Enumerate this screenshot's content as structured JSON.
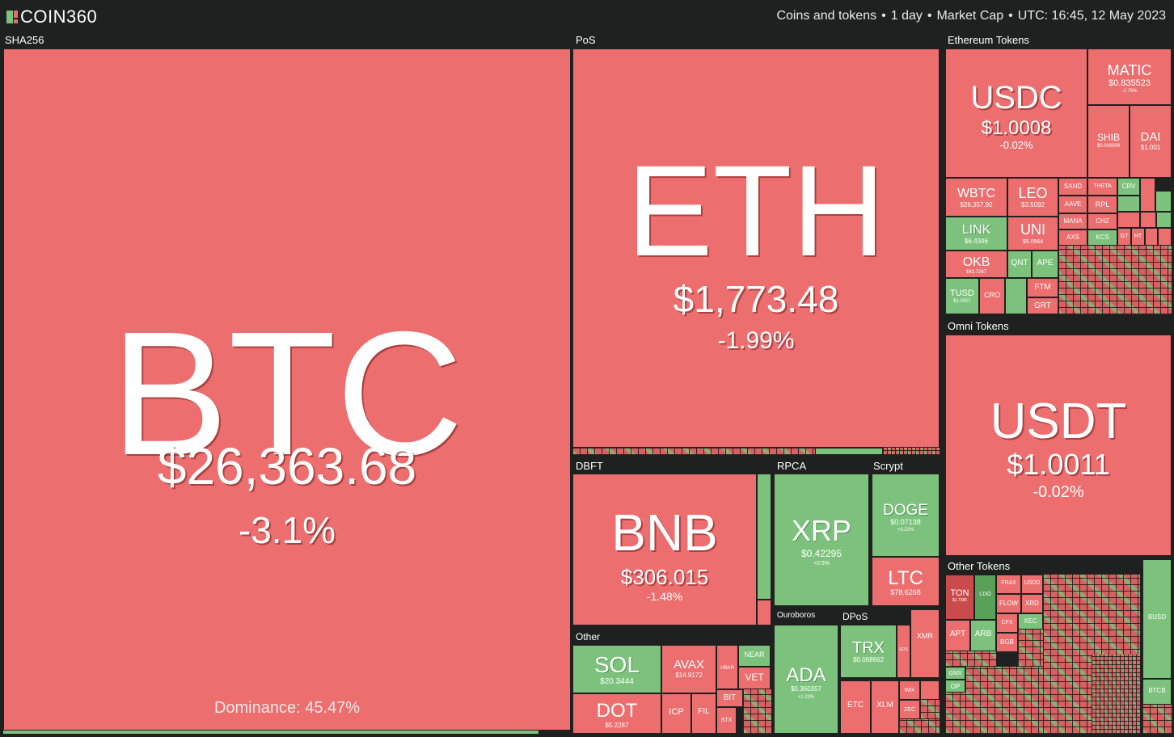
{
  "header": {
    "logo_text": "COIN360",
    "filter_assets": "Coins and tokens",
    "period": "1 day",
    "metric": "Market Cap",
    "time": "UTC: 16:45, 12 May 2023",
    "separator": "•"
  },
  "colors": {
    "down": "#ec6e6e",
    "up": "#7cc27c",
    "background": "#1f2020"
  },
  "groups": {
    "sha256": "SHA256",
    "pos": "PoS",
    "ethereum_tokens": "Ethereum Tokens",
    "omni_tokens": "Omni Tokens",
    "dbft": "DBFT",
    "rpca": "RPCA",
    "scrypt": "Scrypt",
    "other": "Other",
    "ouroboros": "Ouroboros",
    "dpos": "DPoS",
    "other_tokens": "Other Tokens"
  },
  "coins": {
    "btc": {
      "symbol": "BTC",
      "price": "$26,363.68",
      "change": "-3.1%",
      "dominance": "Dominance: 45.47%"
    },
    "eth": {
      "symbol": "ETH",
      "price": "$1,773.48",
      "change": "-1.99%"
    },
    "usdc": {
      "symbol": "USDC",
      "price": "$1.0008",
      "change": "-0.02%"
    },
    "matic": {
      "symbol": "MATIC",
      "price": "$0.835523",
      "change": "-1.76%"
    },
    "shib": {
      "symbol": "SHIB",
      "price": "$0.000009"
    },
    "dai": {
      "symbol": "DAI",
      "price": "$1.001"
    },
    "wbtc": {
      "symbol": "WBTC",
      "price": "$26,357.90"
    },
    "leo": {
      "symbol": "LEO",
      "price": "$3.5092"
    },
    "link": {
      "symbol": "LINK",
      "price": "$6.4346"
    },
    "uni": {
      "symbol": "UNI",
      "price": "$5.0564"
    },
    "okb": {
      "symbol": "OKB",
      "price": "$43.7267"
    },
    "qnt": {
      "symbol": "QNT"
    },
    "ape": {
      "symbol": "APE"
    },
    "tusd": {
      "symbol": "TUSD",
      "price": "$1.0007"
    },
    "cro": {
      "symbol": "CRO"
    },
    "ftm": {
      "symbol": "FTM"
    },
    "grt": {
      "symbol": "GRT"
    },
    "sand": {
      "symbol": "SAND"
    },
    "theta": {
      "symbol": "THETA"
    },
    "crv": {
      "symbol": "CRV"
    },
    "aave": {
      "symbol": "AAVE"
    },
    "rpl": {
      "symbol": "RPL"
    },
    "mana": {
      "symbol": "MANA"
    },
    "chz": {
      "symbol": "CHZ"
    },
    "axs": {
      "symbol": "AXS"
    },
    "kcs": {
      "symbol": "KCS"
    },
    "gt": {
      "symbol": "GT"
    },
    "ht": {
      "symbol": "HT"
    },
    "usdt": {
      "symbol": "USDT",
      "price": "$1.0011",
      "change": "-0.02%"
    },
    "bnb": {
      "symbol": "BNB",
      "price": "$306.015",
      "change": "-1.48%"
    },
    "xrp": {
      "symbol": "XRP",
      "price": "$0.42295",
      "change": "+0.5%"
    },
    "doge": {
      "symbol": "DOGE",
      "price": "$0.07138",
      "change": "+0.22%"
    },
    "ltc": {
      "symbol": "LTC",
      "price": "$78.6268"
    },
    "sol": {
      "symbol": "SOL",
      "price": "$20.3444"
    },
    "dot": {
      "symbol": "DOT",
      "price": "$5.2287"
    },
    "avax": {
      "symbol": "AVAX",
      "price": "$14.9172"
    },
    "near": {
      "symbol": "NEAR"
    },
    "vet": {
      "symbol": "VET"
    },
    "hbar": {
      "symbol": "HBAR"
    },
    "bit": {
      "symbol": "BIT"
    },
    "icp": {
      "symbol": "ICP"
    },
    "fil": {
      "symbol": "FIL"
    },
    "stx": {
      "symbol": "STX"
    },
    "ada": {
      "symbol": "ADA",
      "price": "$0.360357",
      "change": "+1.20%"
    },
    "trx": {
      "symbol": "TRX",
      "price": "$0.068662"
    },
    "xmr": {
      "symbol": "XMR"
    },
    "etc": {
      "symbol": "ETC"
    },
    "xlm": {
      "symbol": "XLM"
    },
    "eos": {
      "symbol": "EOS"
    },
    "imx": {
      "symbol": "IMX"
    },
    "zec": {
      "symbol": "ZEC"
    },
    "ton": {
      "symbol": "TON",
      "price": "$1.7386"
    },
    "ldo": {
      "symbol": "LDO"
    },
    "frax": {
      "symbol": "FRAX"
    },
    "usdd": {
      "symbol": "USDD"
    },
    "flow": {
      "symbol": "FLOW"
    },
    "xrd": {
      "symbol": "XRD"
    },
    "cfx": {
      "symbol": "CFX"
    },
    "xec": {
      "symbol": "XEC"
    },
    "apt": {
      "symbol": "APT"
    },
    "arb": {
      "symbol": "ARB"
    },
    "bgb": {
      "symbol": "BGB"
    },
    "gmx": {
      "symbol": "GMX"
    },
    "op": {
      "symbol": "OP"
    },
    "busd": {
      "symbol": "BUSD"
    },
    "btcb": {
      "symbol": "BTCB"
    }
  }
}
